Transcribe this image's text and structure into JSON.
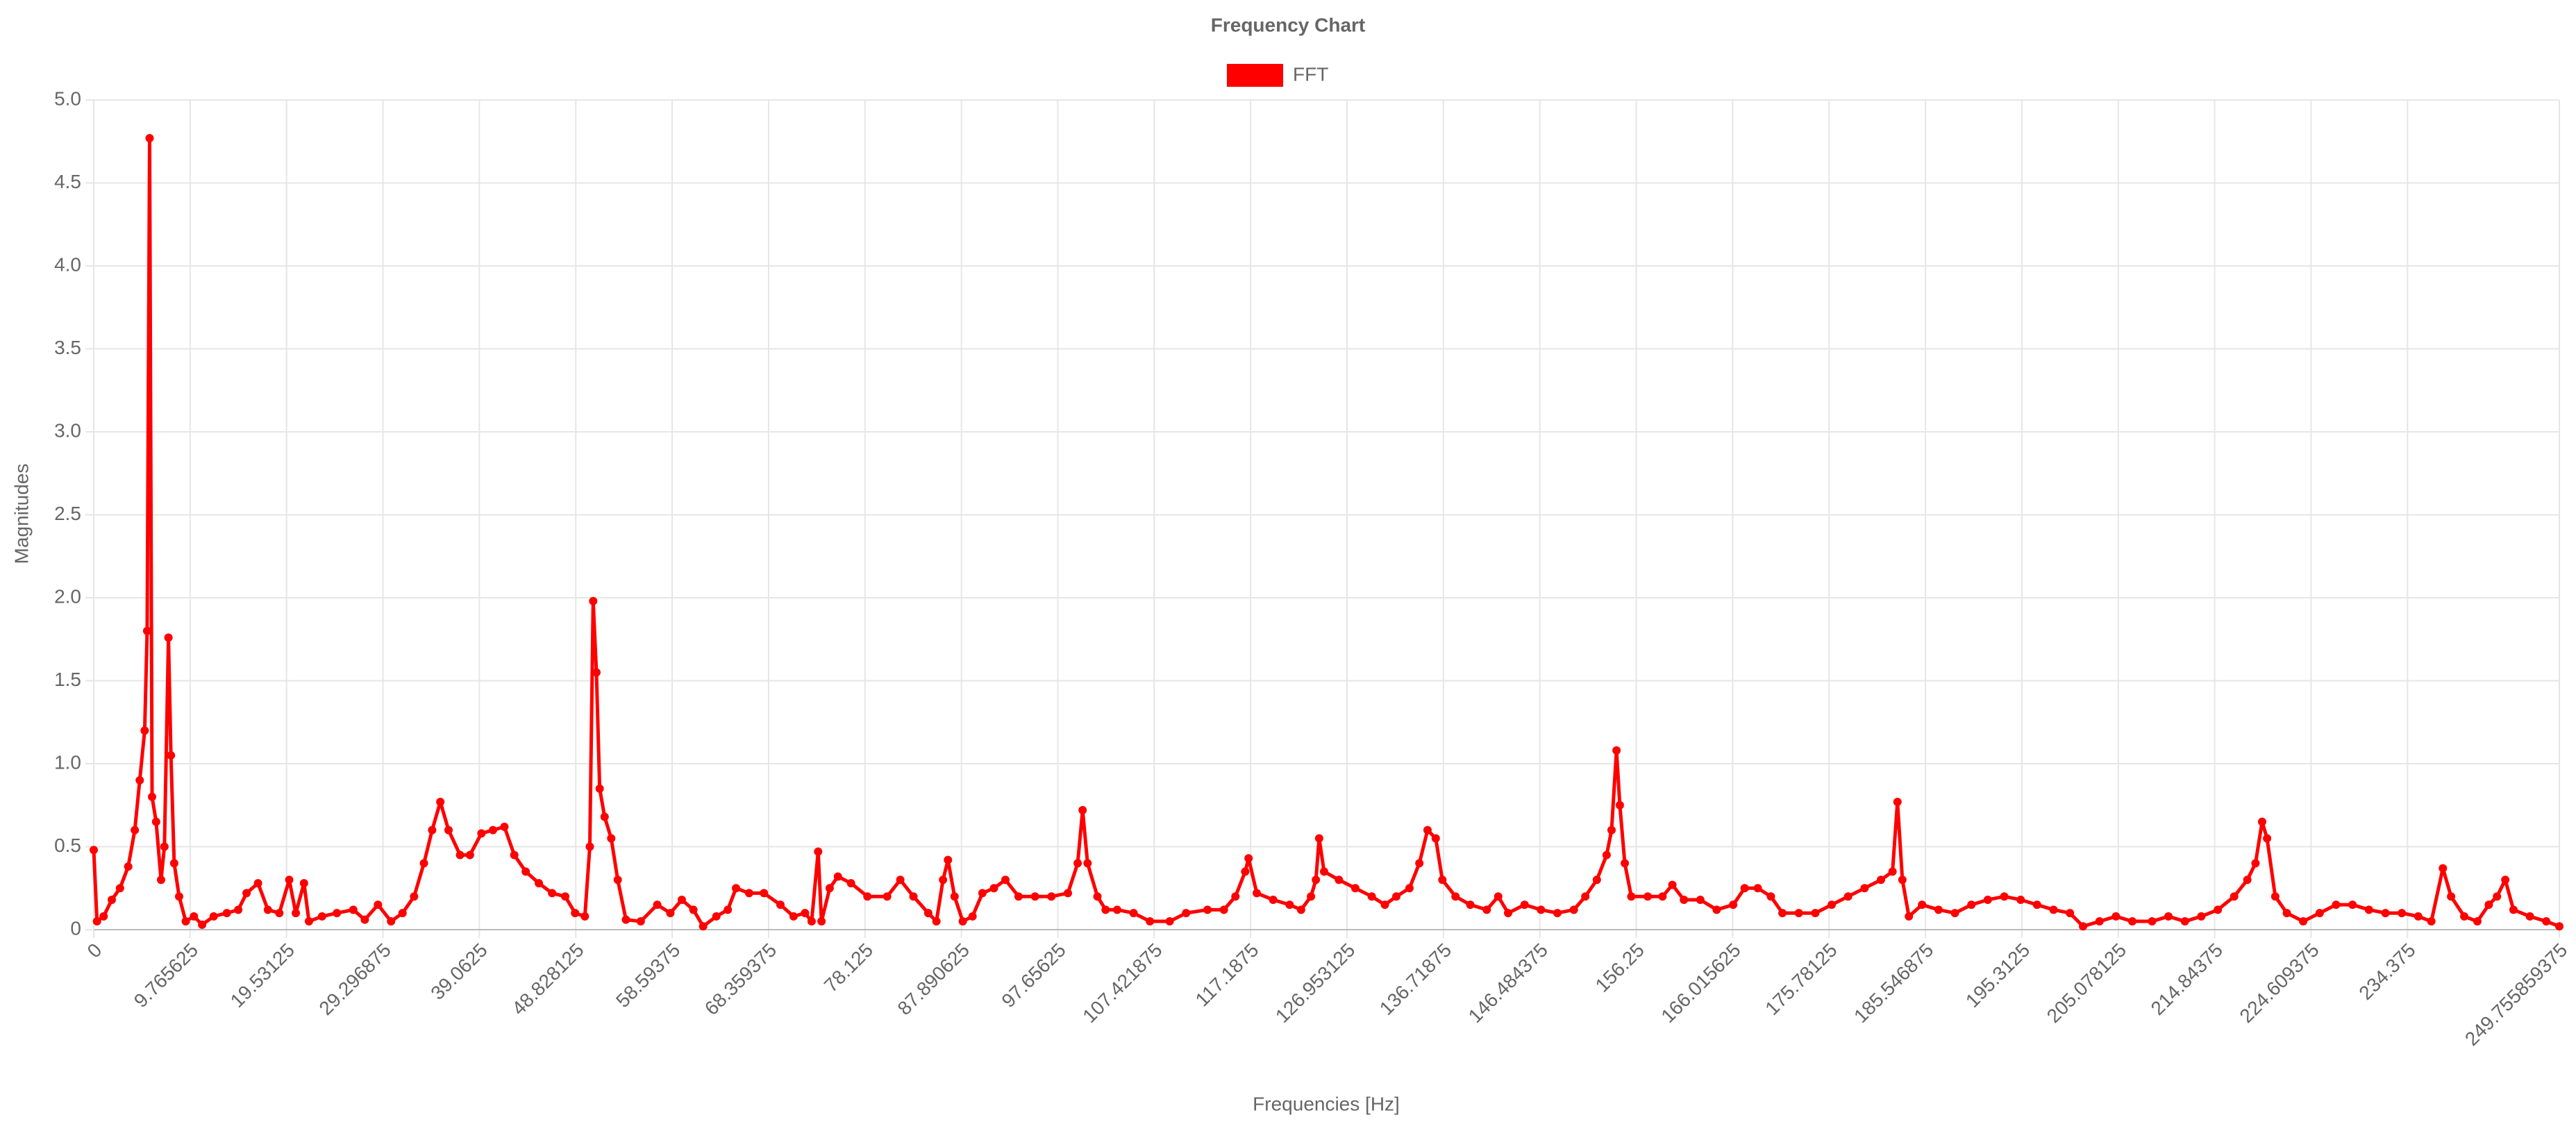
{
  "chart_data": {
    "type": "line",
    "title": "Frequency Chart",
    "xlabel": "Frequencies [Hz]",
    "ylabel": "Magnitudes",
    "xlim": [
      0,
      249.755859375
    ],
    "ylim": [
      0,
      5
    ],
    "xticks": [
      0,
      9.765625,
      19.53125,
      29.296875,
      39.0625,
      48.828125,
      58.59375,
      68.359375,
      78.125,
      87.890625,
      97.65625,
      107.421875,
      117.1875,
      126.953125,
      136.71875,
      146.484375,
      156.25,
      166.015625,
      175.78125,
      185.546875,
      195.3125,
      205.078125,
      214.84375,
      224.609375,
      234.375,
      249.755859375
    ],
    "yticks": [
      0,
      0.5,
      {
        "value": 1,
        "label": "1.0"
      },
      1.5,
      {
        "value": 2,
        "label": "2.0"
      },
      2.5,
      {
        "value": 3,
        "label": "3.0"
      },
      3.5,
      {
        "value": 4,
        "label": "4.0"
      },
      4.5,
      {
        "value": 5,
        "label": "5.0"
      }
    ],
    "grid": true,
    "legend": "top",
    "x": [
      0,
      0.33,
      1.0,
      1.83,
      2.66,
      3.49,
      4.16,
      4.66,
      5.16,
      5.41,
      5.66,
      5.91,
      6.32,
      6.82,
      7.16,
      7.57,
      7.82,
      8.15,
      8.65,
      9.32,
      10.15,
      10.98,
      12.15,
      13.48,
      14.64,
      15.48,
      16.64,
      17.64,
      18.8,
      19.8,
      20.47,
      21.3,
      21.8,
      23.13,
      24.63,
      26.29,
      27.46,
      28.79,
      30.12,
      31.28,
      32.45,
      33.45,
      34.28,
      35.11,
      35.94,
      37.11,
      38.11,
      39.27,
      40.44,
      41.6,
      42.6,
      43.76,
      45.09,
      46.43,
      47.76,
      48.76,
      49.75,
      50.25,
      50.59,
      50.92,
      51.25,
      51.75,
      52.42,
      53.08,
      53.91,
      55.41,
      57.08,
      58.41,
      59.57,
      60.74,
      61.73,
      63.07,
      64.23,
      65.06,
      66.39,
      67.89,
      69.56,
      70.89,
      72.05,
      72.72,
      73.38,
      73.72,
      74.55,
      75.38,
      76.71,
      78.37,
      80.37,
      81.7,
      83.03,
      84.53,
      85.36,
      86.03,
      86.53,
      87.2,
      88.03,
      89.02,
      90.02,
      91.19,
      92.35,
      93.68,
      95.35,
      97.01,
      98.68,
      99.67,
      100.17,
      100.67,
      101.67,
      102.5,
      103.67,
      105.33,
      106.99,
      108.99,
      110.65,
      112.82,
      114.48,
      115.65,
      116.64,
      116.98,
      117.81,
      119.47,
      121.14,
      122.3,
      123.3,
      123.8,
      124.13,
      124.63,
      126.13,
      127.79,
      129.46,
      130.79,
      131.95,
      133.28,
      134.28,
      135.11,
      135.94,
      136.61,
      137.94,
      139.44,
      141.11,
      142.27,
      143.27,
      144.94,
      146.6,
      148.26,
      149.93,
      151.09,
      152.26,
      153.25,
      153.75,
      154.25,
      154.59,
      155.09,
      155.75,
      157.41,
      158.91,
      159.91,
      161.08,
      162.74,
      164.4,
      166.07,
      167.23,
      168.56,
      169.89,
      171.06,
      172.72,
      174.39,
      176.05,
      177.71,
      179.38,
      181.04,
      182.21,
      182.71,
      183.21,
      183.87,
      185.2,
      186.87,
      188.53,
      190.2,
      191.86,
      193.53,
      195.19,
      196.85,
      198.52,
      200.18,
      201.51,
      203.18,
      204.84,
      206.5,
      208.5,
      210.16,
      211.83,
      213.49,
      215.16,
      216.82,
      218.15,
      218.98,
      219.65,
      220.15,
      220.98,
      222.15,
      223.81,
      225.48,
      227.14,
      228.81,
      230.47,
      232.14,
      233.8,
      235.46,
      236.79,
      237.96,
      238.79,
      240.12,
      241.45,
      242.61,
      243.44,
      244.28,
      245.11,
      246.77,
      248.43,
      249.755859375
    ],
    "series": [
      {
        "name": "FFT",
        "color": "#ff0000",
        "values": [
          0.48,
          0.05,
          0.08,
          0.18,
          0.25,
          0.38,
          0.6,
          0.9,
          1.2,
          1.8,
          4.77,
          0.8,
          0.65,
          0.3,
          0.5,
          1.76,
          1.05,
          0.4,
          0.2,
          0.05,
          0.08,
          0.03,
          0.08,
          0.1,
          0.12,
          0.22,
          0.28,
          0.12,
          0.1,
          0.3,
          0.1,
          0.28,
          0.05,
          0.08,
          0.1,
          0.12,
          0.06,
          0.15,
          0.05,
          0.1,
          0.2,
          0.4,
          0.6,
          0.77,
          0.6,
          0.45,
          0.45,
          0.58,
          0.6,
          0.62,
          0.45,
          0.35,
          0.28,
          0.22,
          0.2,
          0.1,
          0.08,
          0.5,
          1.98,
          1.55,
          0.85,
          0.68,
          0.55,
          0.3,
          0.06,
          0.05,
          0.15,
          0.1,
          0.18,
          0.12,
          0.02,
          0.08,
          0.12,
          0.25,
          0.22,
          0.22,
          0.15,
          0.08,
          0.1,
          0.05,
          0.47,
          0.05,
          0.25,
          0.32,
          0.28,
          0.2,
          0.2,
          0.3,
          0.2,
          0.1,
          0.05,
          0.3,
          0.42,
          0.2,
          0.05,
          0.08,
          0.22,
          0.25,
          0.3,
          0.2,
          0.2,
          0.2,
          0.22,
          0.4,
          0.72,
          0.4,
          0.2,
          0.12,
          0.12,
          0.1,
          0.05,
          0.05,
          0.1,
          0.12,
          0.12,
          0.2,
          0.35,
          0.43,
          0.22,
          0.18,
          0.15,
          0.12,
          0.2,
          0.3,
          0.55,
          0.35,
          0.3,
          0.25,
          0.2,
          0.15,
          0.2,
          0.25,
          0.4,
          0.6,
          0.55,
          0.3,
          0.2,
          0.15,
          0.12,
          0.2,
          0.1,
          0.15,
          0.12,
          0.1,
          0.12,
          0.2,
          0.3,
          0.45,
          0.6,
          1.08,
          0.75,
          0.4,
          0.2,
          0.2,
          0.2,
          0.27,
          0.18,
          0.18,
          0.12,
          0.15,
          0.25,
          0.25,
          0.2,
          0.1,
          0.1,
          0.1,
          0.15,
          0.2,
          0.25,
          0.3,
          0.35,
          0.77,
          0.3,
          0.08,
          0.15,
          0.12,
          0.1,
          0.15,
          0.18,
          0.2,
          0.18,
          0.15,
          0.12,
          0.1,
          0.02,
          0.05,
          0.08,
          0.05,
          0.05,
          0.08,
          0.05,
          0.08,
          0.12,
          0.2,
          0.3,
          0.4,
          0.65,
          0.55,
          0.2,
          0.1,
          0.05,
          0.1,
          0.15,
          0.15,
          0.12,
          0.1,
          0.1,
          0.08,
          0.05,
          0.37,
          0.2,
          0.08,
          0.05,
          0.15,
          0.2,
          0.3,
          0.12,
          0.08,
          0.05,
          0.02
        ]
      }
    ]
  }
}
